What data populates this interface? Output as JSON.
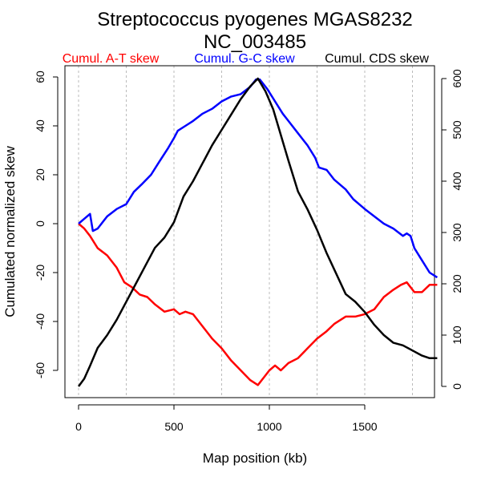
{
  "chart_data": {
    "type": "line",
    "title": "Streptococcus pyogenes MGAS8232",
    "subtitle": "NC_003485",
    "xlabel": "Map position (kb)",
    "ylabel": "Cumulated normalized skew",
    "y2label": "",
    "xlim": [
      0,
      1900
    ],
    "ylim": [
      -66,
      62
    ],
    "y2lim": [
      -10,
      620
    ],
    "x_ticks": [
      0,
      500,
      1000,
      1500
    ],
    "x_tick_labels": [
      "0",
      "500",
      "1000",
      "1500"
    ],
    "x_grid": [
      0,
      250,
      500,
      750,
      1000,
      1250,
      1500,
      1750
    ],
    "y_ticks": [
      -60,
      -40,
      -20,
      0,
      20,
      40,
      60
    ],
    "y_tick_labels": [
      "-60",
      "-40",
      "-20",
      "0",
      "20",
      "40",
      "60"
    ],
    "y2_ticks": [
      0,
      100,
      200,
      300,
      400,
      500,
      600
    ],
    "y2_tick_labels": [
      "0",
      "100",
      "200",
      "300",
      "400",
      "500",
      "600"
    ],
    "grid": "vertical dashed",
    "legend_position": "top",
    "series": [
      {
        "name": "Cumul. A-T skew",
        "color": "#ff0000",
        "axis": "left",
        "x": [
          0,
          30,
          60,
          100,
          150,
          200,
          240,
          280,
          320,
          360,
          400,
          450,
          500,
          530,
          560,
          600,
          650,
          700,
          750,
          800,
          850,
          900,
          940,
          970,
          1000,
          1030,
          1060,
          1100,
          1150,
          1200,
          1250,
          1300,
          1340,
          1400,
          1450,
          1500,
          1550,
          1600,
          1650,
          1690,
          1720,
          1760,
          1800,
          1840,
          1880
        ],
        "y": [
          0,
          -2,
          -5,
          -10,
          -13,
          -18,
          -24,
          -26,
          -29,
          -30,
          -33,
          -36,
          -35,
          -37,
          -36,
          -37,
          -42,
          -47,
          -51,
          -56,
          -60,
          -64,
          -66,
          -63,
          -60,
          -58,
          -60,
          -57,
          -55,
          -51,
          -47,
          -44,
          -41,
          -38,
          -38,
          -37,
          -35,
          -30,
          -27,
          -25,
          -24,
          -28,
          -28,
          -25,
          -25
        ]
      },
      {
        "name": "Cumul. G-C skew",
        "color": "#0000ff",
        "axis": "left",
        "x": [
          0,
          30,
          60,
          75,
          100,
          150,
          200,
          250,
          290,
          330,
          380,
          420,
          470,
          500,
          520,
          560,
          600,
          650,
          700,
          750,
          800,
          850,
          900,
          930,
          950,
          990,
          1030,
          1070,
          1100,
          1150,
          1200,
          1240,
          1260,
          1300,
          1340,
          1400,
          1440,
          1500,
          1550,
          1600,
          1650,
          1700,
          1720,
          1740,
          1760,
          1800,
          1840,
          1880
        ],
        "y": [
          0,
          2,
          4,
          -3,
          -2,
          3,
          6,
          8,
          13,
          16,
          20,
          25,
          31,
          35,
          38,
          40,
          42,
          45,
          47,
          50,
          52,
          53,
          56,
          59,
          59,
          55,
          50,
          45,
          42,
          37,
          32,
          27,
          23,
          22,
          18,
          14,
          10,
          6,
          3,
          0,
          -2,
          -5,
          -4,
          -5,
          -10,
          -15,
          -20,
          -22
        ]
      },
      {
        "name": "Cumul. CDS skew",
        "color": "#000000",
        "axis": "right",
        "x": [
          0,
          30,
          60,
          100,
          150,
          200,
          250,
          300,
          350,
          400,
          450,
          500,
          550,
          600,
          650,
          700,
          750,
          800,
          850,
          900,
          940,
          980,
          1020,
          1060,
          1100,
          1150,
          1200,
          1250,
          1300,
          1350,
          1400,
          1450,
          1500,
          1550,
          1600,
          1650,
          1700,
          1750,
          1800,
          1840,
          1880
        ],
        "y": [
          0,
          15,
          40,
          75,
          100,
          130,
          165,
          200,
          235,
          270,
          290,
          320,
          370,
          400,
          435,
          470,
          500,
          530,
          560,
          585,
          600,
          575,
          540,
          490,
          440,
          380,
          345,
          305,
          260,
          220,
          180,
          165,
          145,
          120,
          100,
          85,
          80,
          70,
          60,
          55,
          55
        ]
      }
    ]
  }
}
